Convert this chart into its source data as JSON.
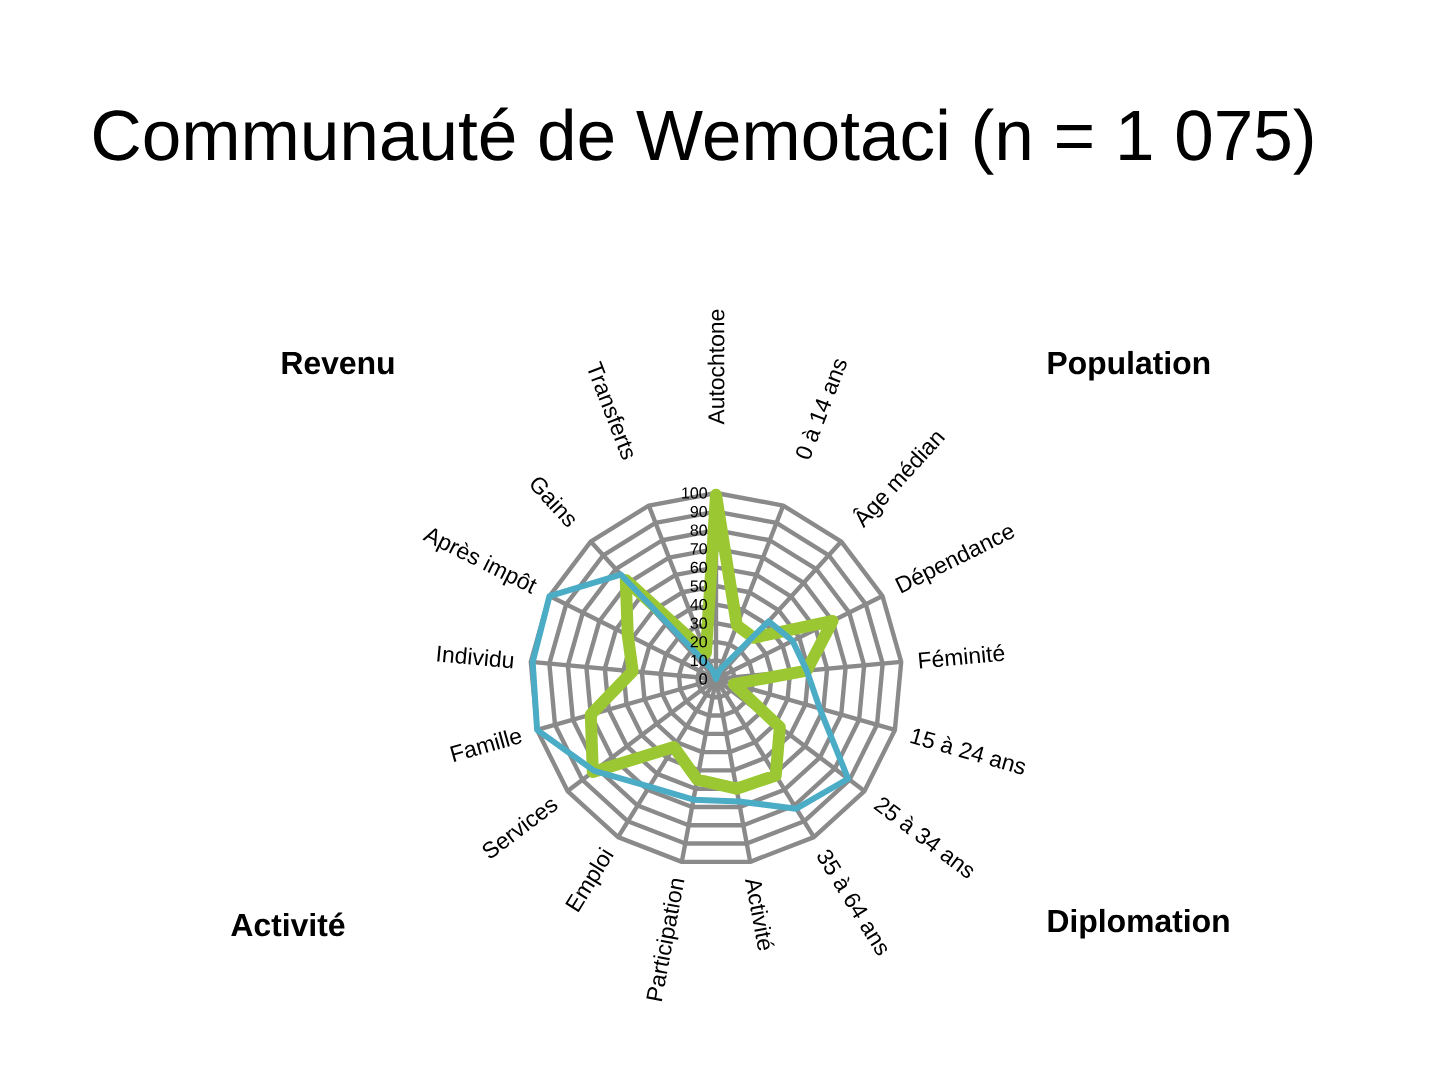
{
  "chart_data": {
    "type": "radar",
    "title": "Communauté de Wemotaci (n = 1 075)",
    "categories": [
      "Autochtone",
      "0 à 14 ans",
      "Âge médian",
      "Dépendance",
      "Féminité",
      "15 à 24 ans",
      "25 à 34 ans",
      "35 à 64 ans",
      "Activité",
      "Participation",
      "Emploi",
      "Services",
      "Famille",
      "Individu",
      "Après impôt",
      "Gains",
      "Transferts"
    ],
    "series": [
      {
        "color": "#9bc832",
        "values": [
          99,
          31,
          30,
          70,
          49,
          10,
          43,
          61,
          60,
          55,
          43,
          83,
          70,
          45,
          53,
          72,
          15
        ]
      },
      {
        "color": "#4bacc6",
        "values": [
          0,
          5,
          42,
          46,
          49,
          58,
          89,
          82,
          67,
          66,
          68,
          82,
          100,
          99,
          100,
          76,
          5
        ]
      }
    ],
    "ylim": [
      0,
      100
    ],
    "yticks": [
      0,
      10,
      20,
      30,
      40,
      50,
      60,
      70,
      80,
      90,
      100
    ],
    "grid": true,
    "annotations": [
      "Revenu",
      "Population",
      "Activité",
      "Diplomation"
    ]
  }
}
